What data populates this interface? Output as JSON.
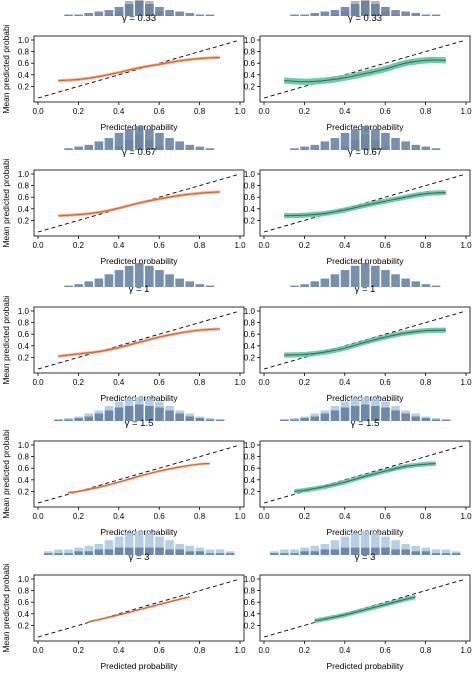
{
  "figure": {
    "xlabel": "Predicted probability",
    "ylabel": "Mean predicted probabi",
    "x_ticks": [
      "0.0",
      "0.2",
      "0.4",
      "0.6",
      "0.8",
      "1.0"
    ],
    "y_ticks": [
      "0.2",
      "0.4",
      "0.6",
      "0.8",
      "1.0"
    ],
    "colors": {
      "left_band": "#f4a582",
      "left_line": "#d9622b",
      "right_band": "#66c2a5",
      "right_line": "#1b7e5a",
      "hist_gray": "#a8a8a8",
      "hist_blue": "#5f7c9f",
      "hist_light_blue": "#a6c8e4",
      "reference_line": "#000000"
    }
  },
  "chart_data": [
    {
      "type": "line",
      "row": 1,
      "col": 1,
      "title": "γ = 0.33",
      "xlabel": "Predicted probability",
      "ylabel": "Mean predicted probabi",
      "xlim": [
        0,
        1
      ],
      "ylim": [
        0,
        1
      ],
      "x": [
        0.1,
        0.2,
        0.3,
        0.4,
        0.5,
        0.6,
        0.7,
        0.8,
        0.9
      ],
      "y": [
        0.3,
        0.32,
        0.37,
        0.44,
        0.52,
        0.58,
        0.64,
        0.68,
        0.7
      ],
      "band_halfwidth": 0.025,
      "hist_bins": [
        0.15,
        0.2,
        0.25,
        0.3,
        0.35,
        0.4,
        0.45,
        0.5,
        0.55,
        0.6,
        0.65,
        0.7,
        0.75,
        0.8,
        0.85
      ],
      "hist_blue": [
        1,
        1,
        2,
        3,
        4,
        6,
        8,
        10,
        8,
        6,
        4,
        3,
        2,
        1,
        1
      ],
      "hist_overlay": [
        0,
        0,
        0,
        0,
        1,
        3,
        10,
        16,
        10,
        3,
        1,
        0,
        0,
        0,
        0
      ]
    },
    {
      "type": "line",
      "row": 1,
      "col": 2,
      "title": "γ = 0.33",
      "xlabel": "Predicted probability",
      "ylabel": "",
      "xlim": [
        0,
        1
      ],
      "ylim": [
        0,
        1
      ],
      "x": [
        0.1,
        0.2,
        0.3,
        0.4,
        0.5,
        0.6,
        0.7,
        0.8,
        0.9
      ],
      "y": [
        0.3,
        0.28,
        0.3,
        0.35,
        0.42,
        0.5,
        0.6,
        0.65,
        0.65
      ],
      "band_halfwidth": 0.055,
      "hist_bins": [
        0.15,
        0.2,
        0.25,
        0.3,
        0.35,
        0.4,
        0.45,
        0.5,
        0.55,
        0.6,
        0.65,
        0.7,
        0.75,
        0.8,
        0.85
      ],
      "hist_blue": [
        1,
        1,
        2,
        3,
        4,
        6,
        8,
        10,
        8,
        6,
        4,
        3,
        2,
        1,
        1
      ],
      "hist_overlay": [
        0,
        0,
        0,
        0,
        1,
        3,
        10,
        16,
        10,
        3,
        1,
        0,
        0,
        0,
        0
      ]
    },
    {
      "type": "line",
      "row": 2,
      "col": 1,
      "title": "γ = 0.67",
      "xlabel": "Predicted probability",
      "ylabel": "Mean predicted probabi",
      "xlim": [
        0,
        1
      ],
      "ylim": [
        0,
        1
      ],
      "x": [
        0.1,
        0.2,
        0.3,
        0.4,
        0.5,
        0.6,
        0.7,
        0.8,
        0.9
      ],
      "y": [
        0.28,
        0.3,
        0.34,
        0.41,
        0.5,
        0.57,
        0.63,
        0.67,
        0.69
      ],
      "band_halfwidth": 0.025,
      "hist_bins": [
        0.15,
        0.2,
        0.25,
        0.3,
        0.35,
        0.4,
        0.45,
        0.5,
        0.55,
        0.6,
        0.65,
        0.7,
        0.75,
        0.8,
        0.85
      ],
      "hist_blue": [
        1,
        2,
        3,
        5,
        7,
        10,
        12,
        14,
        12,
        10,
        7,
        5,
        3,
        2,
        1
      ],
      "hist_overlay": [
        0,
        0,
        0,
        0,
        0,
        2,
        6,
        9,
        6,
        2,
        0,
        0,
        0,
        0,
        0
      ]
    },
    {
      "type": "line",
      "row": 2,
      "col": 2,
      "title": "γ = 0.67",
      "xlabel": "Predicted probability",
      "ylabel": "",
      "xlim": [
        0,
        1
      ],
      "ylim": [
        0,
        1
      ],
      "x": [
        0.1,
        0.2,
        0.3,
        0.4,
        0.5,
        0.6,
        0.7,
        0.8,
        0.9
      ],
      "y": [
        0.28,
        0.29,
        0.32,
        0.38,
        0.46,
        0.53,
        0.6,
        0.66,
        0.68
      ],
      "band_halfwidth": 0.045,
      "hist_bins": [
        0.15,
        0.2,
        0.25,
        0.3,
        0.35,
        0.4,
        0.45,
        0.5,
        0.55,
        0.6,
        0.65,
        0.7,
        0.75,
        0.8,
        0.85
      ],
      "hist_blue": [
        1,
        2,
        3,
        5,
        7,
        10,
        12,
        14,
        12,
        10,
        7,
        5,
        3,
        2,
        1
      ],
      "hist_overlay": [
        0,
        0,
        0,
        0,
        0,
        2,
        6,
        9,
        6,
        2,
        0,
        0,
        0,
        0,
        0
      ]
    },
    {
      "type": "line",
      "row": 3,
      "col": 1,
      "title": "γ = 1",
      "xlabel": "Predicted probability",
      "ylabel": "Mean predicted probabi",
      "xlim": [
        0,
        1
      ],
      "ylim": [
        0,
        1
      ],
      "x": [
        0.1,
        0.2,
        0.3,
        0.4,
        0.5,
        0.6,
        0.7,
        0.8,
        0.9
      ],
      "y": [
        0.22,
        0.26,
        0.3,
        0.37,
        0.46,
        0.55,
        0.62,
        0.67,
        0.69
      ],
      "band_halfwidth": 0.025,
      "hist_bins": [
        0.15,
        0.2,
        0.25,
        0.3,
        0.35,
        0.4,
        0.45,
        0.5,
        0.55,
        0.6,
        0.65,
        0.7,
        0.75,
        0.8,
        0.85
      ],
      "hist_blue": [
        1,
        2,
        4,
        6,
        9,
        12,
        15,
        17,
        15,
        12,
        9,
        6,
        4,
        2,
        1
      ],
      "hist_overlay": [
        0,
        0,
        0,
        0,
        0,
        0,
        0,
        0,
        0,
        0,
        0,
        0,
        0,
        0,
        0
      ]
    },
    {
      "type": "line",
      "row": 3,
      "col": 2,
      "title": "γ = 1",
      "xlabel": "Predicted probability",
      "ylabel": "",
      "xlim": [
        0,
        1
      ],
      "ylim": [
        0,
        1
      ],
      "x": [
        0.1,
        0.2,
        0.3,
        0.4,
        0.5,
        0.6,
        0.7,
        0.8,
        0.9
      ],
      "y": [
        0.24,
        0.25,
        0.29,
        0.36,
        0.46,
        0.55,
        0.62,
        0.66,
        0.67
      ],
      "band_halfwidth": 0.045,
      "hist_bins": [
        0.15,
        0.2,
        0.25,
        0.3,
        0.35,
        0.4,
        0.45,
        0.5,
        0.55,
        0.6,
        0.65,
        0.7,
        0.75,
        0.8,
        0.85
      ],
      "hist_blue": [
        1,
        2,
        4,
        6,
        9,
        12,
        15,
        17,
        15,
        12,
        9,
        6,
        4,
        2,
        1
      ],
      "hist_overlay": [
        0,
        0,
        0,
        0,
        0,
        0,
        0,
        0,
        0,
        0,
        0,
        0,
        0,
        0,
        0
      ]
    },
    {
      "type": "line",
      "row": 4,
      "col": 1,
      "title": "γ = 1.5",
      "xlabel": "Predicted probability",
      "ylabel": "Mean predicted probabi",
      "xlim": [
        0,
        1
      ],
      "ylim": [
        0,
        1
      ],
      "x": [
        0.15,
        0.2,
        0.3,
        0.4,
        0.5,
        0.6,
        0.7,
        0.8,
        0.85
      ],
      "y": [
        0.18,
        0.2,
        0.27,
        0.36,
        0.46,
        0.55,
        0.62,
        0.67,
        0.68
      ],
      "band_halfwidth": 0.02,
      "hist_bins": [
        0.1,
        0.15,
        0.2,
        0.25,
        0.3,
        0.35,
        0.4,
        0.45,
        0.5,
        0.55,
        0.6,
        0.65,
        0.7,
        0.75,
        0.8,
        0.85,
        0.9
      ],
      "hist_blue": [
        1,
        1,
        2,
        3,
        5,
        7,
        9,
        10,
        11,
        10,
        9,
        7,
        5,
        3,
        2,
        1,
        1
      ],
      "hist_overlay": [
        1,
        2,
        3,
        5,
        7,
        10,
        13,
        15,
        16,
        15,
        13,
        10,
        7,
        5,
        3,
        2,
        1
      ]
    },
    {
      "type": "line",
      "row": 4,
      "col": 2,
      "title": "γ = 1.5",
      "xlabel": "Predicted probability",
      "ylabel": "",
      "xlim": [
        0,
        1
      ],
      "ylim": [
        0,
        1
      ],
      "x": [
        0.15,
        0.2,
        0.3,
        0.4,
        0.5,
        0.6,
        0.7,
        0.8,
        0.85
      ],
      "y": [
        0.2,
        0.22,
        0.28,
        0.36,
        0.46,
        0.55,
        0.63,
        0.67,
        0.68
      ],
      "band_halfwidth": 0.04,
      "hist_bins": [
        0.1,
        0.15,
        0.2,
        0.25,
        0.3,
        0.35,
        0.4,
        0.45,
        0.5,
        0.55,
        0.6,
        0.65,
        0.7,
        0.75,
        0.8,
        0.85,
        0.9
      ],
      "hist_blue": [
        1,
        1,
        2,
        3,
        5,
        7,
        9,
        10,
        11,
        10,
        9,
        7,
        5,
        3,
        2,
        1,
        1
      ],
      "hist_overlay": [
        1,
        2,
        3,
        5,
        7,
        10,
        13,
        15,
        16,
        15,
        13,
        10,
        7,
        5,
        3,
        2,
        1
      ]
    },
    {
      "type": "line",
      "row": 5,
      "col": 1,
      "title": "γ = 3",
      "xlabel": "Predicted probability",
      "ylabel": "Mean predicted probabi",
      "xlim": [
        0,
        1
      ],
      "ylim": [
        0,
        1
      ],
      "x": [
        0.25,
        0.3,
        0.4,
        0.5,
        0.6,
        0.7,
        0.75
      ],
      "y": [
        0.26,
        0.3,
        0.38,
        0.47,
        0.56,
        0.65,
        0.69
      ],
      "band_halfwidth": 0.018,
      "hist_bins": [
        0.05,
        0.1,
        0.15,
        0.2,
        0.25,
        0.3,
        0.35,
        0.4,
        0.45,
        0.5,
        0.55,
        0.6,
        0.65,
        0.7,
        0.75,
        0.8,
        0.85,
        0.9,
        0.95
      ],
      "hist_blue": [
        1,
        1,
        1,
        2,
        2,
        3,
        3,
        4,
        4,
        4,
        4,
        4,
        3,
        3,
        2,
        2,
        1,
        1,
        1
      ],
      "hist_overlay": [
        2,
        3,
        3,
        4,
        5,
        6,
        8,
        10,
        12,
        13,
        12,
        10,
        8,
        6,
        5,
        4,
        3,
        3,
        2
      ]
    },
    {
      "type": "line",
      "row": 5,
      "col": 2,
      "title": "γ = 3",
      "xlabel": "Predicted probability",
      "ylabel": "",
      "xlim": [
        0,
        1
      ],
      "ylim": [
        0,
        1
      ],
      "x": [
        0.25,
        0.3,
        0.4,
        0.5,
        0.6,
        0.7,
        0.75
      ],
      "y": [
        0.28,
        0.31,
        0.38,
        0.47,
        0.56,
        0.65,
        0.69
      ],
      "band_halfwidth": 0.04,
      "hist_bins": [
        0.05,
        0.1,
        0.15,
        0.2,
        0.25,
        0.3,
        0.35,
        0.4,
        0.45,
        0.5,
        0.55,
        0.6,
        0.65,
        0.7,
        0.75,
        0.8,
        0.85,
        0.9,
        0.95
      ],
      "hist_blue": [
        1,
        1,
        1,
        2,
        2,
        3,
        3,
        4,
        4,
        4,
        4,
        4,
        3,
        3,
        2,
        2,
        1,
        1,
        1
      ],
      "hist_overlay": [
        2,
        3,
        3,
        4,
        5,
        6,
        8,
        10,
        12,
        13,
        12,
        10,
        8,
        6,
        5,
        4,
        3,
        3,
        2
      ]
    }
  ]
}
